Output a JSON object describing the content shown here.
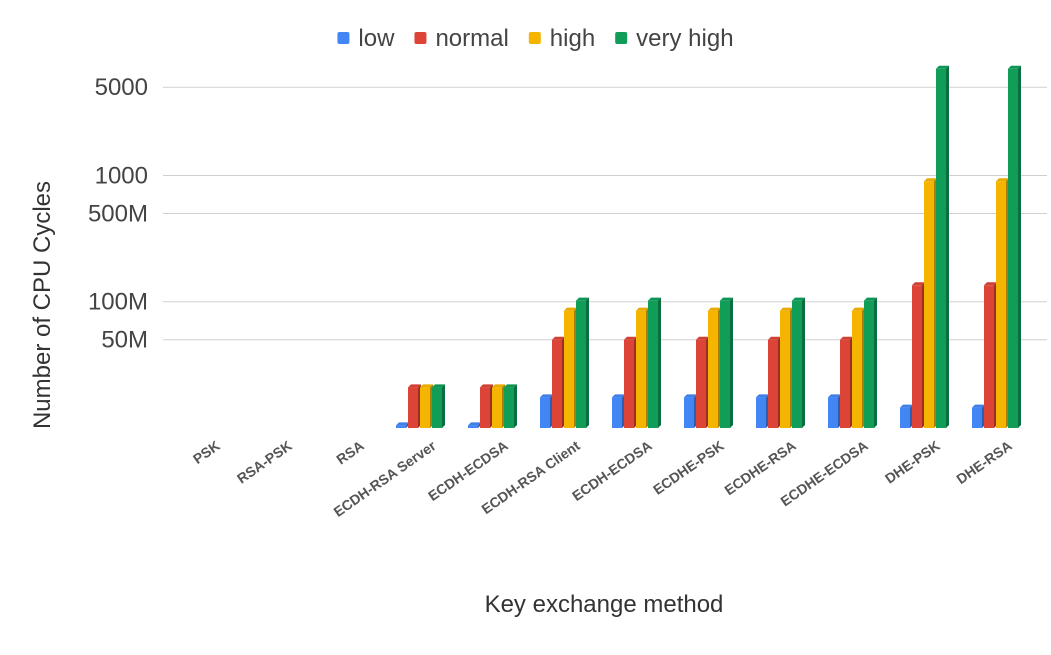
{
  "chart_data": {
    "type": "bar",
    "title": "",
    "xlabel": "Key exchange method",
    "ylabel": "Number of CPU Cycles",
    "yscale": "log",
    "ylim": [
      10,
      9000
    ],
    "yticks": [
      {
        "value": 50,
        "label": "50M"
      },
      {
        "value": 100,
        "label": "100M"
      },
      {
        "value": 500,
        "label": "500M"
      },
      {
        "value": 1000,
        "label": "1000"
      },
      {
        "value": 5000,
        "label": "5000"
      }
    ],
    "grid": true,
    "legend_position": "top-center",
    "categories": [
      "PSK",
      "RSA-PSK",
      "RSA",
      "ECDH-RSA Server",
      "ECDH-ECDSA",
      "ECDH-RSA Client",
      "ECDH-ECDSA",
      "ECDHE-PSK",
      "ECDHE-RSA",
      "ECDHE-ECDSA",
      "DHE-PSK",
      "DHE-RSA"
    ],
    "series": [
      {
        "name": "low",
        "color": "#4285F4",
        "values": [
          null,
          null,
          null,
          10.5,
          10.5,
          17.5,
          17.5,
          17.5,
          17.5,
          17.5,
          14.5,
          14.5
        ]
      },
      {
        "name": "normal",
        "color": "#DB4437",
        "values": [
          null,
          null,
          null,
          21,
          21,
          50,
          50,
          50,
          50,
          50,
          135,
          135
        ]
      },
      {
        "name": "high",
        "color": "#F4B400",
        "values": [
          null,
          null,
          null,
          21,
          21,
          85,
          85,
          85,
          85,
          85,
          900,
          900
        ]
      },
      {
        "name": "very high",
        "color": "#0F9D58",
        "values": [
          null,
          null,
          null,
          21,
          21,
          102,
          102,
          102,
          102,
          102,
          7000,
          7000
        ]
      }
    ]
  }
}
